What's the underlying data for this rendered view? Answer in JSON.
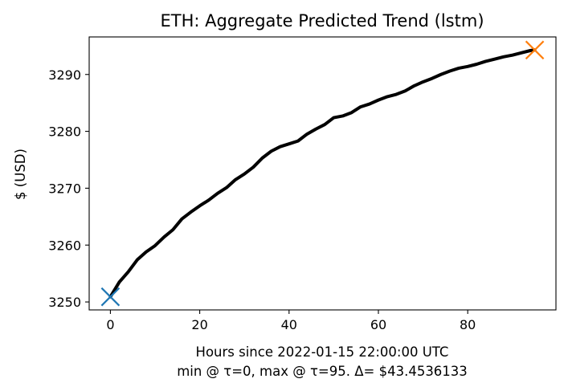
{
  "chart_data": {
    "type": "line",
    "title": "ETH: Aggregate Predicted Trend (lstm)",
    "xlabel": "Hours since 2022-01-15 22:00:00 UTC",
    "xlabel_line2": "min @ τ=0, max @ τ=95. Δ= $43.4536133",
    "ylabel": "$ (USD)",
    "xlim": [
      -4.75,
      99.75
    ],
    "ylim": [
      3248.6,
      3296.6
    ],
    "xticks": [
      0,
      20,
      40,
      60,
      80
    ],
    "yticks": [
      3250,
      3260,
      3270,
      3280,
      3290
    ],
    "grid": false,
    "series": [
      {
        "color": "#000000",
        "x": [
          0,
          2,
          4,
          6,
          8,
          10,
          12,
          14,
          16,
          18,
          20,
          22,
          24,
          26,
          28,
          30,
          32,
          34,
          36,
          38,
          40,
          42,
          44,
          46,
          48,
          50,
          52,
          54,
          56,
          58,
          60,
          62,
          64,
          66,
          68,
          70,
          72,
          74,
          76,
          78,
          80,
          82,
          84,
          86,
          88,
          90,
          92,
          94,
          95
        ],
        "values": [
          3250.9,
          3253.5,
          3255.3,
          3257.4,
          3258.8,
          3259.9,
          3261.4,
          3262.7,
          3264.6,
          3265.8,
          3266.9,
          3267.9,
          3269.1,
          3270.1,
          3271.5,
          3272.5,
          3273.7,
          3275.3,
          3276.5,
          3277.3,
          3277.8,
          3278.3,
          3279.5,
          3280.4,
          3281.2,
          3282.4,
          3282.7,
          3283.3,
          3284.3,
          3284.8,
          3285.5,
          3286.1,
          3286.5,
          3287.1,
          3288.0,
          3288.7,
          3289.3,
          3290.0,
          3290.6,
          3291.1,
          3291.4,
          3291.8,
          3292.3,
          3292.7,
          3293.1,
          3293.4,
          3293.8,
          3294.2,
          3294.3
        ]
      }
    ],
    "markers": [
      {
        "x": 0,
        "y": 3250.9,
        "color": "#1f77b4",
        "marker": "x"
      },
      {
        "x": 95,
        "y": 3294.3,
        "color": "#ff7f0e",
        "marker": "x"
      }
    ]
  }
}
